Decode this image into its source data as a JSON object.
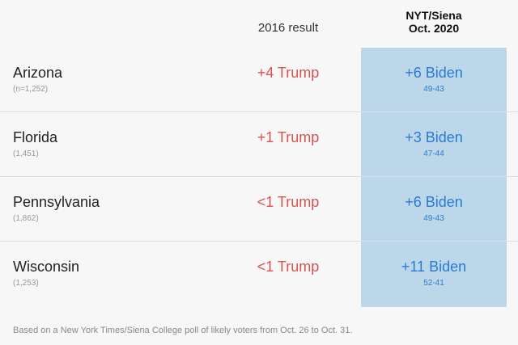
{
  "header": {
    "result_2016_label": "2016 result",
    "poll_label_line1": "NYT/Siena",
    "poll_label_line2": "Oct. 2020"
  },
  "rows": [
    {
      "state": "Arizona",
      "sample": "(n=1,252)",
      "result_2016": "+4 Trump",
      "poll_margin": "+6 Biden",
      "poll_split": "49-43"
    },
    {
      "state": "Florida",
      "sample": "(1,451)",
      "result_2016": "+1 Trump",
      "poll_margin": "+3 Biden",
      "poll_split": "47-44"
    },
    {
      "state": "Pennsylvania",
      "sample": "(1,862)",
      "result_2016": "<1 Trump",
      "poll_margin": "+6 Biden",
      "poll_split": "49-43"
    },
    {
      "state": "Wisconsin",
      "sample": "(1,253)",
      "result_2016": "<1 Trump",
      "poll_margin": "+11 Biden",
      "poll_split": "52-41"
    }
  ],
  "footnote": "Based on a New York Times/Siena College poll of likely voters from Oct. 26 to Oct. 31.",
  "colors": {
    "trump": "#d9534f",
    "biden": "#2a7bd5",
    "poll_column_bg": "#bcd6ea",
    "page_bg": "#f7f7f7"
  }
}
